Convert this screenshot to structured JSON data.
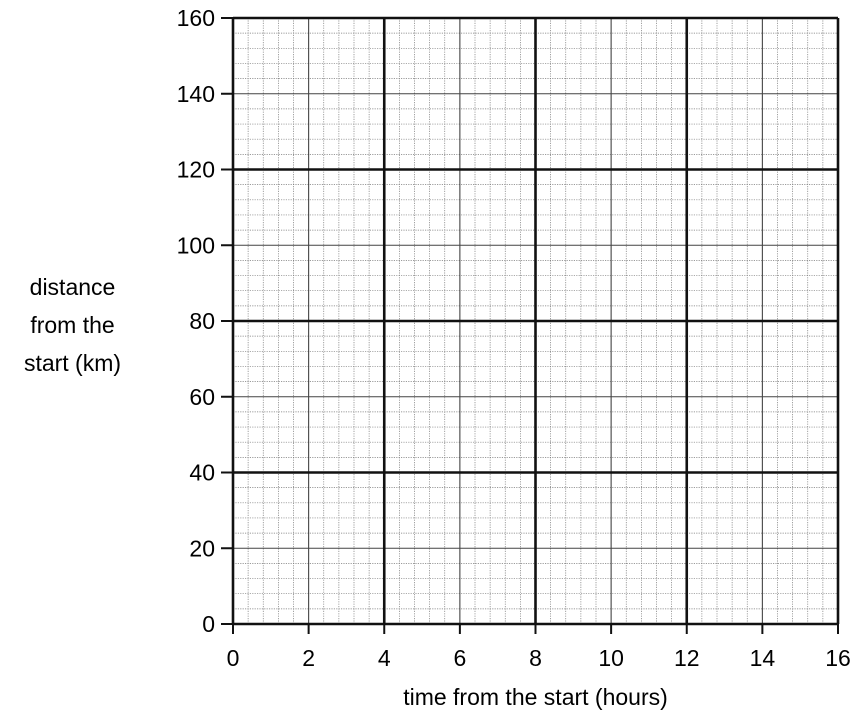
{
  "chart_data": {
    "type": "scatter",
    "title": "",
    "xlabel": "time from the start (hours)",
    "ylabel_lines": [
      "distance",
      "from the",
      "start (km)"
    ],
    "xlim": [
      0,
      16
    ],
    "ylim": [
      0,
      160
    ],
    "x_ticks": [
      0,
      2,
      4,
      6,
      8,
      10,
      12,
      14,
      16
    ],
    "y_ticks": [
      0,
      20,
      40,
      60,
      80,
      100,
      120,
      140,
      160
    ],
    "x_major_grid": [
      4,
      8,
      12
    ],
    "y_major_grid": [
      40,
      80,
      120
    ],
    "grid": true,
    "series": []
  }
}
